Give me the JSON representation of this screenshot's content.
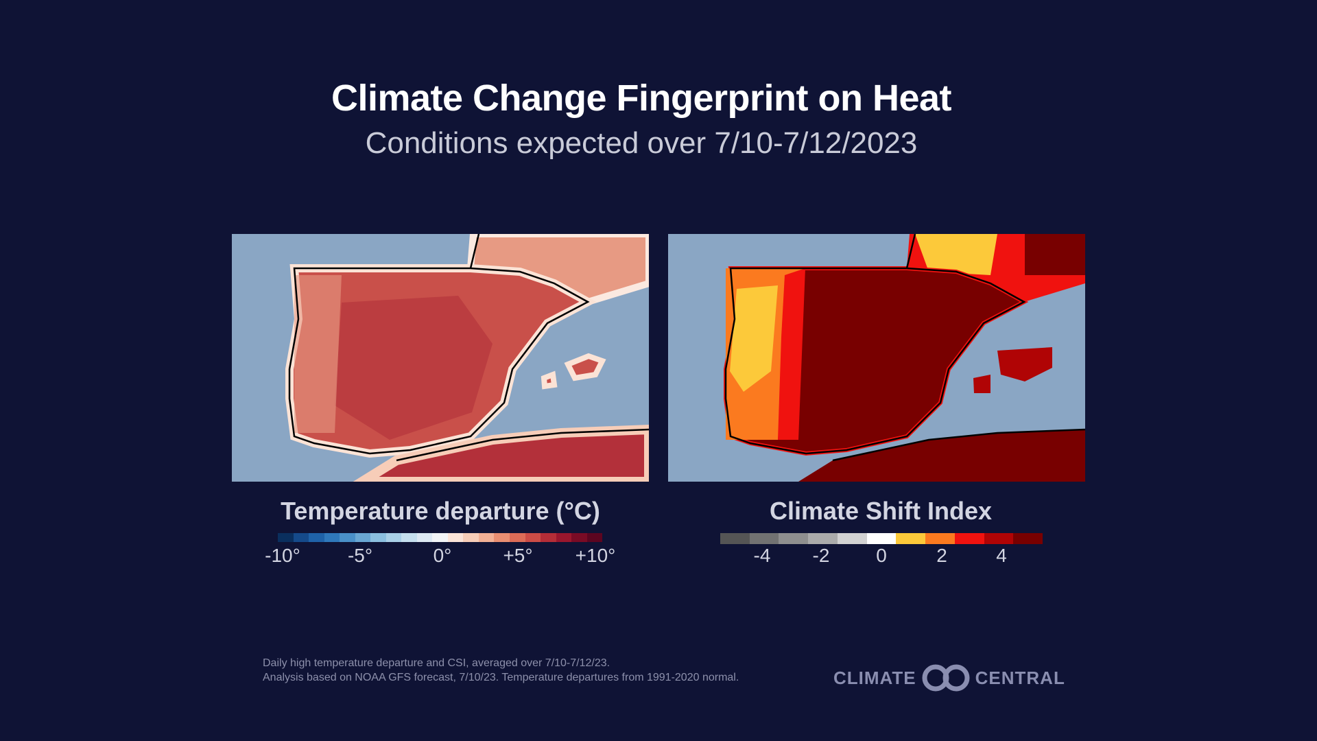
{
  "title": "Climate Change Fingerprint on Heat",
  "subtitle": "Conditions expected over 7/10-7/12/2023",
  "chart_data": [
    {
      "type": "heatmap",
      "title": "Temperature departure (°C)",
      "colorbar": {
        "ticks": [
          "-10°",
          "-5°",
          "0°",
          "+5°",
          "+10°"
        ],
        "range": [
          -10,
          10
        ],
        "colors": [
          "#0a2f5e",
          "#154a8a",
          "#1f62a8",
          "#2f78bb",
          "#4a90c8",
          "#6aa7d3",
          "#8bbfdf",
          "#a9d0e7",
          "#c5dfee",
          "#dde9f3",
          "#f2f4f6",
          "#fbe4d8",
          "#f7cdb8",
          "#f2b095",
          "#e98e72",
          "#dd6c57",
          "#cc4c46",
          "#b52d37",
          "#9a162d",
          "#7a0b25",
          "#5c0520"
        ]
      },
      "region_summary": "Iberia mostly +3° to +10° warmer than normal"
    },
    {
      "type": "heatmap",
      "title": "Climate Shift Index",
      "colorbar": {
        "ticks": [
          "-4",
          "-2",
          "0",
          "2",
          "4"
        ],
        "range": [
          -5,
          5
        ],
        "colors": [
          "#555555",
          "#727272",
          "#8f8f8f",
          "#ababab",
          "#d2d2d2",
          "#ffffff",
          "#fcc93a",
          "#fb7a1f",
          "#f0120f",
          "#b00405",
          "#780000"
        ]
      },
      "region_summary": "Most of Spain and North Africa at CSI 5"
    }
  ],
  "footnote": {
    "line1": "Daily high temperature departure and CSI, averaged over 7/10-7/12/23.",
    "line2": "Analysis based on NOAA GFS forecast, 7/10/23. Temperature departures from 1991-2020 normal."
  },
  "logo": {
    "left": "CLIMATE",
    "right": "CENTRAL"
  },
  "colors": {
    "background": "#0f1335",
    "sea": "#8aa6c4"
  }
}
